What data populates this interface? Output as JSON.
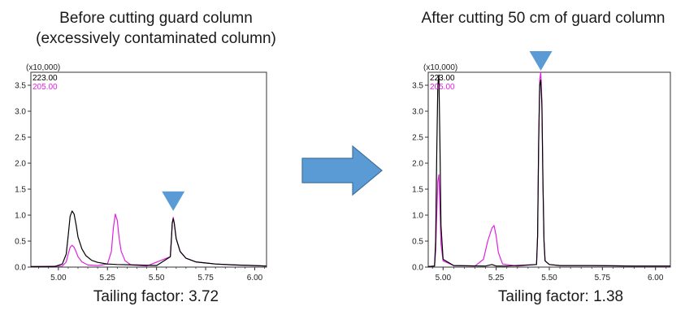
{
  "layout": {
    "left_title_line1": "Before cutting guard column",
    "left_title_line2": "(excessively contaminated column)",
    "right_title": "After cutting 50 cm of guard column",
    "left_caption": "Tailing factor: 3.72",
    "right_caption": "Tailing factor: 1.38"
  },
  "colors": {
    "series_223": "#000000",
    "series_205": "#e020e0",
    "marker": "#5b9bd5",
    "arrow": "#5b9bd5"
  },
  "chart_data": [
    {
      "type": "line",
      "multiplier_label": "(x10,000)",
      "xlim": [
        4.86,
        6.06
      ],
      "ylim": [
        0,
        3.75
      ],
      "xticks": [
        5.0,
        5.25,
        5.5,
        5.75,
        6.0
      ],
      "xtick_labels": [
        "5.00",
        "5.25",
        "5.50",
        "5.75",
        "6.00"
      ],
      "yticks": [
        0.0,
        0.5,
        1.0,
        1.5,
        2.0,
        2.5,
        3.0,
        3.5
      ],
      "ytick_labels": [
        "0.0",
        "0.5",
        "1.0",
        "1.5",
        "2.0",
        "2.5",
        "3.0",
        "3.5"
      ],
      "marker_x": 5.585,
      "marker_y": 1.05,
      "series": [
        {
          "name": "223.00",
          "x": [
            4.86,
            4.98,
            5.02,
            5.04,
            5.05,
            5.06,
            5.07,
            5.08,
            5.09,
            5.1,
            5.12,
            5.14,
            5.17,
            5.2,
            5.25,
            5.3,
            5.4,
            5.5,
            5.57,
            5.575,
            5.58,
            5.585,
            5.59,
            5.6,
            5.62,
            5.65,
            5.7,
            5.8,
            5.9,
            6.0,
            6.06
          ],
          "y": [
            0.01,
            0.01,
            0.06,
            0.25,
            0.6,
            0.98,
            1.08,
            1.02,
            0.82,
            0.58,
            0.35,
            0.22,
            0.13,
            0.09,
            0.06,
            0.05,
            0.04,
            0.03,
            0.2,
            0.5,
            0.85,
            0.93,
            0.85,
            0.55,
            0.3,
            0.17,
            0.1,
            0.06,
            0.04,
            0.03,
            0.02
          ]
        },
        {
          "name": "205.00",
          "x": [
            4.86,
            5.02,
            5.04,
            5.05,
            5.06,
            5.07,
            5.08,
            5.09,
            5.1,
            5.12,
            5.15,
            5.2,
            5.25,
            5.27,
            5.28,
            5.29,
            5.3,
            5.31,
            5.32,
            5.34,
            5.37,
            5.45,
            5.57,
            5.575,
            5.58,
            5.585,
            5.59,
            5.6,
            5.62,
            5.65,
            5.7,
            5.8,
            5.9,
            6.0,
            6.06
          ],
          "y": [
            0.01,
            0.02,
            0.1,
            0.25,
            0.38,
            0.42,
            0.38,
            0.3,
            0.2,
            0.1,
            0.04,
            0.03,
            0.06,
            0.3,
            0.75,
            1.02,
            0.9,
            0.55,
            0.3,
            0.12,
            0.04,
            0.02,
            0.2,
            0.5,
            0.85,
            0.96,
            0.85,
            0.55,
            0.3,
            0.17,
            0.1,
            0.06,
            0.04,
            0.03,
            0.02
          ]
        }
      ]
    },
    {
      "type": "line",
      "multiplier_label": "(x10,000)",
      "xlim": [
        4.93,
        6.07
      ],
      "ylim": [
        0,
        3.75
      ],
      "xticks": [
        5.0,
        5.25,
        5.5,
        5.75,
        6.0
      ],
      "xtick_labels": [
        "5.00",
        "5.25",
        "5.50",
        "5.75",
        "6.00"
      ],
      "yticks": [
        0.0,
        0.5,
        1.0,
        1.5,
        2.0,
        2.5,
        3.0,
        3.5
      ],
      "ytick_labels": [
        "0.0",
        "0.5",
        "1.0",
        "1.5",
        "2.0",
        "2.5",
        "3.0",
        "3.5"
      ],
      "marker_x": 5.46,
      "marker_y": 3.75,
      "series": [
        {
          "name": "223.00",
          "x": [
            4.93,
            4.96,
            4.965,
            4.97,
            4.975,
            4.98,
            4.985,
            4.99,
            5.0,
            5.05,
            5.2,
            5.23,
            5.25,
            5.3,
            5.44,
            5.445,
            5.45,
            5.455,
            5.46,
            5.465,
            5.47,
            5.475,
            5.48,
            5.5,
            5.55,
            5.7,
            5.9,
            6.07
          ],
          "y": [
            0.01,
            0.02,
            0.5,
            2.2,
            3.5,
            3.7,
            2.4,
            0.8,
            0.15,
            0.03,
            0.02,
            0.05,
            0.02,
            0.02,
            0.05,
            0.6,
            2.4,
            3.5,
            3.6,
            3.1,
            1.6,
            0.5,
            0.12,
            0.05,
            0.03,
            0.03,
            0.02,
            0.02
          ]
        },
        {
          "name": "205.00",
          "x": [
            4.93,
            4.96,
            4.965,
            4.97,
            4.975,
            4.98,
            4.985,
            4.99,
            5.0,
            5.05,
            5.15,
            5.19,
            5.21,
            5.23,
            5.24,
            5.25,
            5.26,
            5.28,
            5.35,
            5.44,
            5.445,
            5.45,
            5.455,
            5.46,
            5.465,
            5.47,
            5.475,
            5.48,
            5.5,
            5.55,
            5.7,
            5.9,
            6.07
          ],
          "y": [
            0.01,
            0.02,
            0.3,
            1.0,
            1.65,
            1.78,
            1.2,
            0.45,
            0.12,
            0.03,
            0.02,
            0.15,
            0.5,
            0.75,
            0.8,
            0.6,
            0.28,
            0.06,
            0.02,
            0.05,
            0.6,
            2.4,
            3.6,
            3.75,
            3.2,
            1.6,
            0.5,
            0.12,
            0.05,
            0.03,
            0.03,
            0.02,
            0.02
          ]
        }
      ]
    }
  ]
}
